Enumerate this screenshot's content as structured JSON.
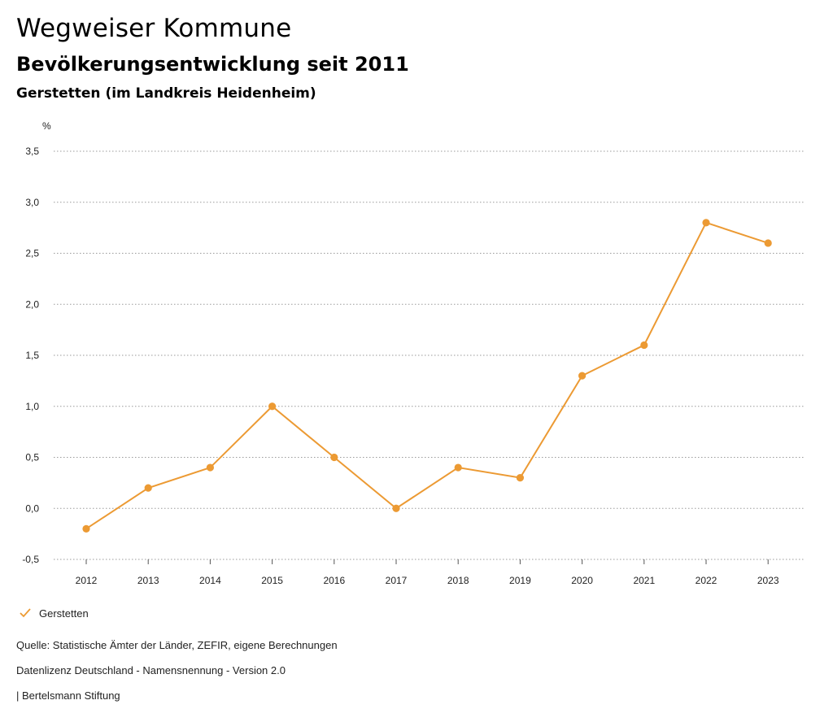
{
  "header": {
    "title": "Wegweiser Kommune",
    "subtitle": "Bevölkerungsentwicklung seit 2011",
    "region": "Gerstetten (im Landkreis Heidenheim)"
  },
  "chart_data": {
    "type": "line",
    "title": "Bevölkerungsentwicklung seit 2011",
    "ylabel": "%",
    "xlabel": "",
    "categories": [
      "2012",
      "2013",
      "2014",
      "2015",
      "2016",
      "2017",
      "2018",
      "2019",
      "2020",
      "2021",
      "2022",
      "2023"
    ],
    "series": [
      {
        "name": "Gerstetten",
        "color": "#ec9a33",
        "values": [
          -0.2,
          0.2,
          0.4,
          1.0,
          0.5,
          0.0,
          0.4,
          0.3,
          1.3,
          1.6,
          2.8,
          2.6
        ]
      }
    ],
    "yticks": [
      -0.5,
      0.0,
      0.5,
      1.0,
      1.5,
      2.0,
      2.5,
      3.0,
      3.5
    ],
    "ytick_labels": [
      "-0,5",
      "0,0",
      "0,5",
      "1,0",
      "1,5",
      "2,0",
      "2,5",
      "3,0",
      "3,5"
    ],
    "ylim": [
      -0.5,
      3.5
    ],
    "grid": true,
    "legend": "bottom-left"
  },
  "footer": {
    "source": "Quelle: Statistische Ämter der Länder, ZEFIR, eigene Berechnungen",
    "license": "Datenlizenz Deutschland - Namensnennung - Version 2.0",
    "publisher": "| Bertelsmann Stiftung"
  }
}
